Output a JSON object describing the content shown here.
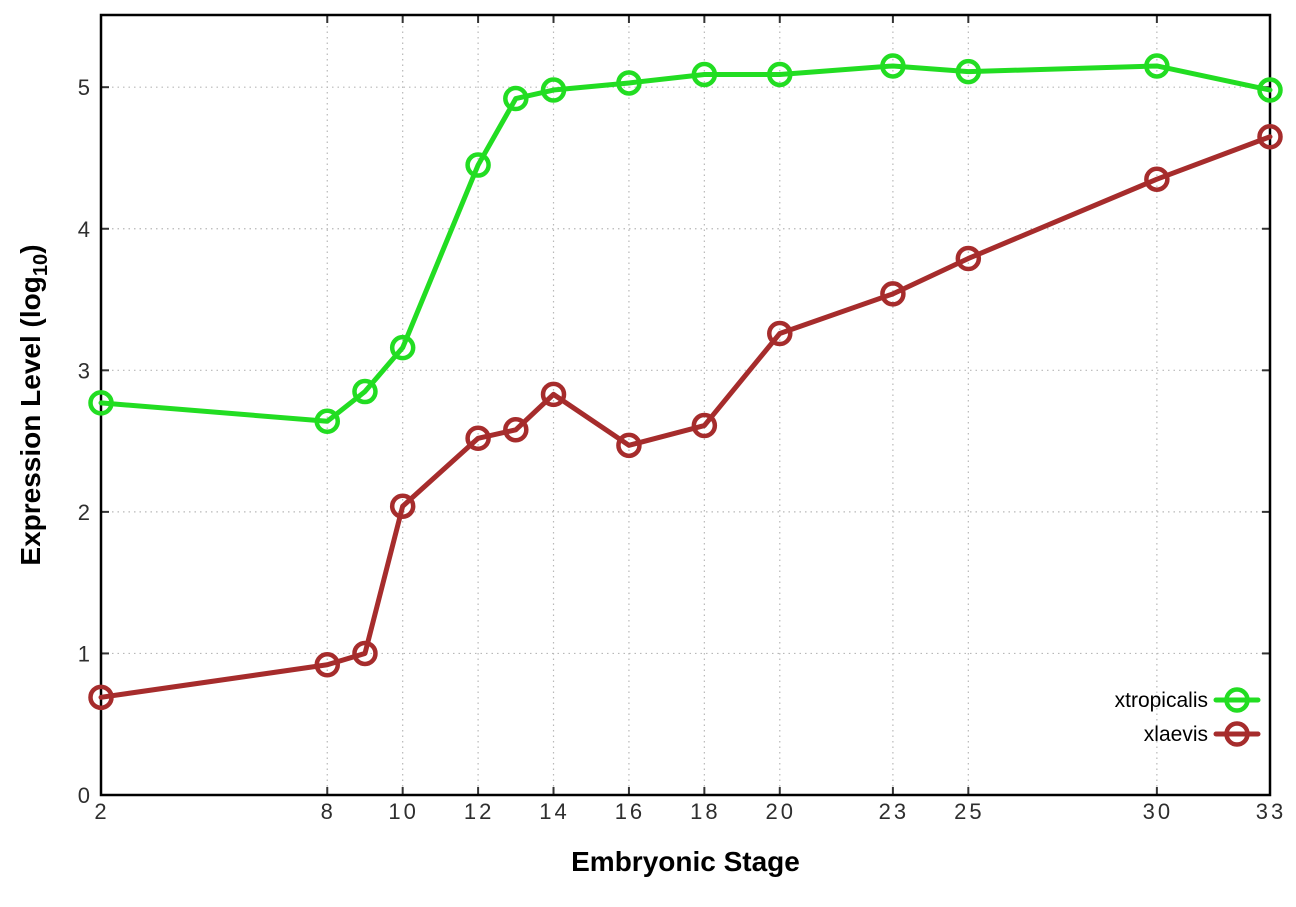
{
  "chart_data": {
    "type": "line",
    "title": "",
    "xlabel": "Embryonic Stage",
    "ylabel": "Expression Level (log10)",
    "ylabel_parts": {
      "prefix": "Expression Level (log",
      "subscript": "10",
      "suffix": ")"
    },
    "x": [
      2,
      8,
      9,
      10,
      12,
      13,
      14,
      16,
      18,
      20,
      23,
      25,
      30,
      33
    ],
    "series": [
      {
        "name": "xtropicalis",
        "color": "#22DD22",
        "values": [
          2.77,
          2.64,
          2.85,
          3.16,
          4.45,
          4.92,
          4.98,
          5.03,
          5.09,
          5.09,
          5.15,
          5.11,
          5.15,
          4.98
        ]
      },
      {
        "name": "xlaevis",
        "color": "#A62C2C",
        "values": [
          0.69,
          0.92,
          1.0,
          2.04,
          2.52,
          2.58,
          2.83,
          2.47,
          2.61,
          3.26,
          3.54,
          3.79,
          4.35,
          4.65
        ]
      }
    ],
    "xlim": [
      2,
      33
    ],
    "ylim": [
      0,
      5.51
    ],
    "x_ticks": [
      2,
      8,
      10,
      12,
      14,
      16,
      18,
      20,
      23,
      25,
      30,
      33
    ],
    "y_ticks": [
      0,
      1,
      2,
      3,
      4,
      5
    ],
    "grid": true,
    "grid_style": "dotted",
    "legend_position": "bottom-right-inside",
    "marker": "open-circle",
    "colors": {
      "background": "#ffffff",
      "border": "#000000",
      "grid": "#b8b8b8",
      "tick": "#333333",
      "tick_label": "#2e2e2e",
      "legend_text": "#000000"
    }
  }
}
